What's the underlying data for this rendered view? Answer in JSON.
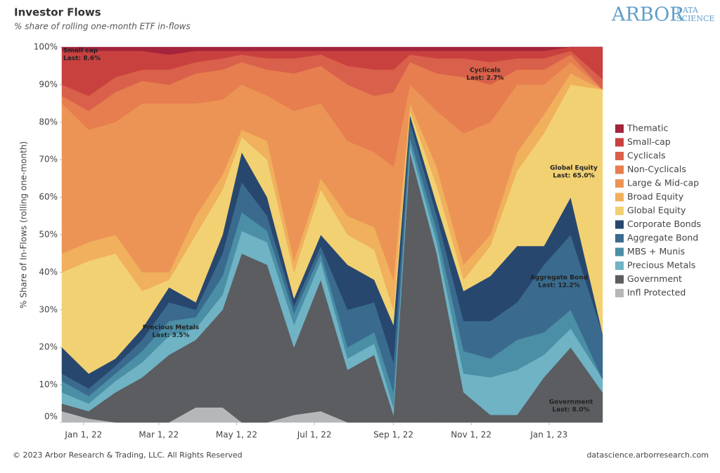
{
  "chart_data": {
    "type": "stacked-area",
    "title": "Investor Flows",
    "subtitle": "% share of rolling one-month ETF in-flows",
    "logo": {
      "main": "ARBOR",
      "sub1": "DATA",
      "sub2": "SCIENCE"
    },
    "y_label": "% Share of In-Flows (rolling one-month)",
    "footer_left": "© 2023 Arbor Research & Trading, LLC. All Rights Reserved",
    "footer_right": "datascience.arborresearch.com",
    "x": [
      "2021-12-15",
      "2022-01-05",
      "2022-01-26",
      "2022-02-16",
      "2022-03-09",
      "2022-03-30",
      "2022-04-20",
      "2022-05-05",
      "2022-05-25",
      "2022-06-15",
      "2022-07-06",
      "2022-07-27",
      "2022-08-17",
      "2022-09-01",
      "2022-09-14",
      "2022-10-05",
      "2022-10-26",
      "2022-11-16",
      "2022-12-07",
      "2022-12-28",
      "2023-01-18",
      "2023-02-12"
    ],
    "xlim": [
      "2021-12-15",
      "2023-02-12"
    ],
    "xticks": [
      {
        "value": "2022-01-01",
        "label": "Jan 1, 22"
      },
      {
        "value": "2022-03-01",
        "label": "Mar 1, 22"
      },
      {
        "value": "2022-05-01",
        "label": "May 1, 22"
      },
      {
        "value": "2022-07-01",
        "label": "Jul 1, 22"
      },
      {
        "value": "2022-09-01",
        "label": "Sep 1, 22"
      },
      {
        "value": "2022-11-01",
        "label": "Nov 1, 22"
      },
      {
        "value": "2023-01-01",
        "label": "Jan 1, 23"
      }
    ],
    "ylim": [
      0,
      100
    ],
    "yticks": [
      {
        "value": 0,
        "label": "0%"
      },
      {
        "value": 10,
        "label": "10%"
      },
      {
        "value": 20,
        "label": "20%"
      },
      {
        "value": 30,
        "label": "30%"
      },
      {
        "value": 40,
        "label": "40%"
      },
      {
        "value": 50,
        "label": "50%"
      },
      {
        "value": 60,
        "label": "60%"
      },
      {
        "value": 70,
        "label": "70%"
      },
      {
        "value": 80,
        "label": "80%"
      },
      {
        "value": 90,
        "label": "90%"
      },
      {
        "value": 100,
        "label": "100%"
      }
    ],
    "series": [
      {
        "name": "Thematic",
        "color": "#a3243b",
        "values": [
          1,
          1,
          1,
          1,
          2,
          1,
          1,
          1,
          1,
          1,
          1,
          1,
          1,
          1,
          1,
          1,
          1,
          1,
          1,
          1,
          0,
          0
        ]
      },
      {
        "name": "Small-cap",
        "color": "#c9413f",
        "values": [
          9,
          12,
          7,
          5,
          4,
          3,
          2,
          1,
          2,
          2,
          1,
          4,
          5,
          5,
          1,
          2,
          2,
          3,
          2,
          2,
          1,
          8.6
        ]
      },
      {
        "name": "Cyclicals",
        "color": "#d9604a",
        "values": [
          3,
          4,
          4,
          3,
          4,
          3,
          3,
          2,
          3,
          4,
          3,
          5,
          7,
          6,
          2,
          4,
          5,
          6,
          3,
          3,
          1,
          2.7
        ]
      },
      {
        "name": "Non-Cyclicals",
        "color": "#e67e4f",
        "values": [
          2,
          5,
          8,
          6,
          5,
          8,
          8,
          6,
          7,
          10,
          10,
          15,
          15,
          20,
          6,
          10,
          15,
          10,
          4,
          4,
          2,
          0
        ]
      },
      {
        "name": "Large & Mid-cap",
        "color": "#ec9455",
        "values": [
          40,
          30,
          30,
          45,
          45,
          30,
          20,
          12,
          12,
          40,
          20,
          20,
          20,
          30,
          5,
          15,
          35,
          30,
          18,
          8,
          3,
          0
        ]
      },
      {
        "name": "Broad Equity",
        "color": "#f0b05c",
        "values": [
          5,
          5,
          5,
          5,
          2,
          5,
          4,
          2,
          5,
          3,
          3,
          5,
          6,
          8,
          2,
          5,
          4,
          3,
          5,
          5,
          3,
          0
        ]
      },
      {
        "name": "Global Equity",
        "color": "#f2d173",
        "values": [
          20,
          30,
          28,
          10,
          2,
          18,
          12,
          4,
          10,
          7,
          12,
          8,
          8,
          4,
          1,
          5,
          3,
          8,
          20,
          30,
          30,
          65.0
        ]
      },
      {
        "name": "Corporate Bonds",
        "color": "#27476e",
        "values": [
          7,
          4,
          2,
          3,
          4,
          2,
          5,
          8,
          5,
          2,
          3,
          12,
          6,
          10,
          2,
          3,
          8,
          12,
          15,
          5,
          10,
          0
        ]
      },
      {
        "name": "Aggregate Bond",
        "color": "#3a6b8e",
        "values": [
          2,
          2,
          2,
          3,
          5,
          2,
          6,
          8,
          4,
          2,
          2,
          10,
          8,
          8,
          4,
          4,
          8,
          10,
          10,
          18,
          20,
          12.2
        ]
      },
      {
        "name": "MBS + Munis",
        "color": "#4b8fa6",
        "values": [
          3,
          2,
          2,
          3,
          4,
          3,
          5,
          5,
          3,
          3,
          2,
          3,
          3,
          4,
          2,
          3,
          6,
          5,
          8,
          6,
          5,
          0
        ]
      },
      {
        "name": "Precious Metals",
        "color": "#6fb3c5",
        "values": [
          3,
          2,
          3,
          4,
          5,
          3,
          4,
          6,
          6,
          6,
          5,
          3,
          3,
          2,
          2,
          3,
          5,
          10,
          12,
          6,
          5,
          3.5
        ]
      },
      {
        "name": "Government",
        "color": "#5b5d61",
        "values": [
          2,
          2,
          8,
          12,
          18,
          18,
          26,
          45,
          42,
          18,
          35,
          14,
          18,
          2,
          72,
          45,
          8,
          2,
          2,
          12,
          20,
          8.0
        ]
      },
      {
        "name": "Infl Protected",
        "color": "#b5b7b9",
        "values": [
          3,
          1,
          0,
          0,
          0,
          4,
          4,
          0,
          0,
          2,
          3,
          0,
          0,
          0,
          0,
          0,
          0,
          0,
          0,
          0,
          0,
          0
        ]
      }
    ],
    "annotations": [
      {
        "label": "Small cap",
        "last": "Last: 8.6%"
      },
      {
        "label": "Cyclicals",
        "last": "Last: 2.7%"
      },
      {
        "label": "Global Equity",
        "last": "Last: 65.0%"
      },
      {
        "label": "Precious Metals",
        "last": "Last: 3.5%"
      },
      {
        "label": "Aggregate Bond",
        "last": "Last: 12.2%"
      },
      {
        "label": "Government",
        "last": "Last: 8.0%"
      }
    ]
  }
}
